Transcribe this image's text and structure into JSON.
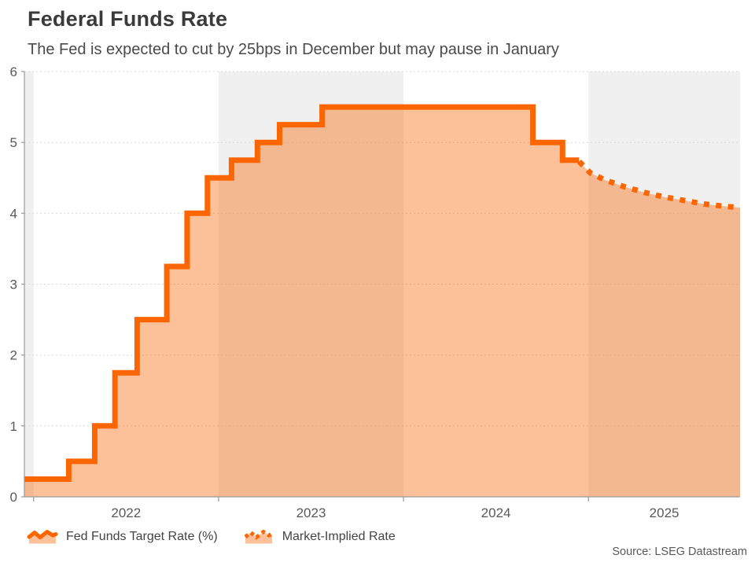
{
  "header": {
    "title": "Federal Funds Rate",
    "subtitle": "The Fed is expected to cut by 25bps in December but may pause in January"
  },
  "source": "Source: LSEG Datastream",
  "legend": {
    "items": [
      {
        "label": "Fed Funds Target Rate (%)",
        "icon": "solid-step-area-swatch"
      },
      {
        "label": "Market-Implied Rate",
        "icon": "dotted-line-area-swatch"
      }
    ]
  },
  "colors": {
    "line": "#fb6502",
    "area_fill": "rgba(251,101,2,0.40)",
    "year_band": "#f0f0f0",
    "grid": "#d8d8d8",
    "axis": "#9a9a9a",
    "tick_text": "#595959",
    "title_text": "#3b3b3b",
    "subtitle_text": "#4a4a4a"
  },
  "chart_data": {
    "type": "area",
    "title": "Federal Funds Rate",
    "subtitle": "The Fed is expected to cut by 25bps in December but may pause in January",
    "xlabel": "",
    "ylabel": "",
    "x_domain": [
      2021.95,
      2025.82
    ],
    "y_domain": [
      0,
      6
    ],
    "y_ticks": [
      0,
      1,
      2,
      3,
      4,
      5,
      6
    ],
    "x_ticks": [
      {
        "label": "2022",
        "span": [
          2022,
          2023
        ]
      },
      {
        "label": "2023",
        "span": [
          2023,
          2024
        ]
      },
      {
        "label": "2024",
        "span": [
          2024,
          2025
        ]
      },
      {
        "label": "2025",
        "span": [
          2025,
          2025.82
        ]
      }
    ],
    "shaded_bands": [
      [
        2021.95,
        2022
      ],
      [
        2023,
        2024
      ],
      [
        2025,
        2025.82
      ]
    ],
    "grid": "dotted-horizontal",
    "legend_position": "bottom-left",
    "series": [
      {
        "name": "Fed Funds Target Rate (%)",
        "type": "step-area",
        "end_x": 2024.95,
        "points": [
          {
            "x": 2021.95,
            "y": 0.25
          },
          {
            "x": 2022.19,
            "y": 0.5
          },
          {
            "x": 2022.33,
            "y": 1.0
          },
          {
            "x": 2022.44,
            "y": 1.75
          },
          {
            "x": 2022.56,
            "y": 2.5
          },
          {
            "x": 2022.72,
            "y": 3.25
          },
          {
            "x": 2022.83,
            "y": 4.0
          },
          {
            "x": 2022.94,
            "y": 4.5
          },
          {
            "x": 2023.07,
            "y": 4.75
          },
          {
            "x": 2023.21,
            "y": 5.0
          },
          {
            "x": 2023.33,
            "y": 5.25
          },
          {
            "x": 2023.56,
            "y": 5.5
          },
          {
            "x": 2024.7,
            "y": 5.0
          },
          {
            "x": 2024.86,
            "y": 4.75
          }
        ]
      },
      {
        "name": "Market-Implied Rate",
        "type": "dotted-line-area",
        "points": [
          {
            "x": 2024.95,
            "y": 4.73
          },
          {
            "x": 2025.01,
            "y": 4.57
          },
          {
            "x": 2025.09,
            "y": 4.47
          },
          {
            "x": 2025.2,
            "y": 4.37
          },
          {
            "x": 2025.31,
            "y": 4.29
          },
          {
            "x": 2025.41,
            "y": 4.23
          },
          {
            "x": 2025.52,
            "y": 4.18
          },
          {
            "x": 2025.63,
            "y": 4.13
          },
          {
            "x": 2025.73,
            "y": 4.1
          },
          {
            "x": 2025.82,
            "y": 4.08
          }
        ]
      }
    ]
  }
}
